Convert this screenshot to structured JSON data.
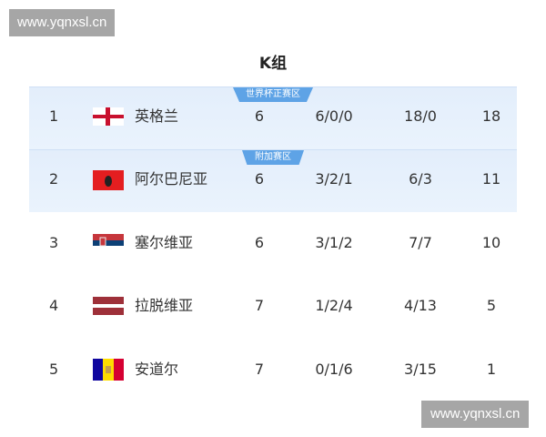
{
  "watermark": "www.yqnxsl.cn",
  "title": "K组",
  "zones": {
    "direct": "世界杯正赛区",
    "playoff": "附加赛区"
  },
  "rows": [
    {
      "rank": "1",
      "team": "英格兰",
      "flag": "england-flag-icon",
      "played": "6",
      "wdl": "6/0/0",
      "goals": "18/0",
      "points": "18"
    },
    {
      "rank": "2",
      "team": "阿尔巴尼亚",
      "flag": "albania-flag-icon",
      "played": "6",
      "wdl": "3/2/1",
      "goals": "6/3",
      "points": "11"
    },
    {
      "rank": "3",
      "team": "塞尔维亚",
      "flag": "serbia-flag-icon",
      "played": "6",
      "wdl": "3/1/2",
      "goals": "7/7",
      "points": "10"
    },
    {
      "rank": "4",
      "team": "拉脱维亚",
      "flag": "latvia-flag-icon",
      "played": "7",
      "wdl": "1/2/4",
      "goals": "4/13",
      "points": "5"
    },
    {
      "rank": "5",
      "team": "安道尔",
      "flag": "andorra-flag-icon",
      "played": "7",
      "wdl": "0/1/6",
      "goals": "3/15",
      "points": "1"
    }
  ]
}
